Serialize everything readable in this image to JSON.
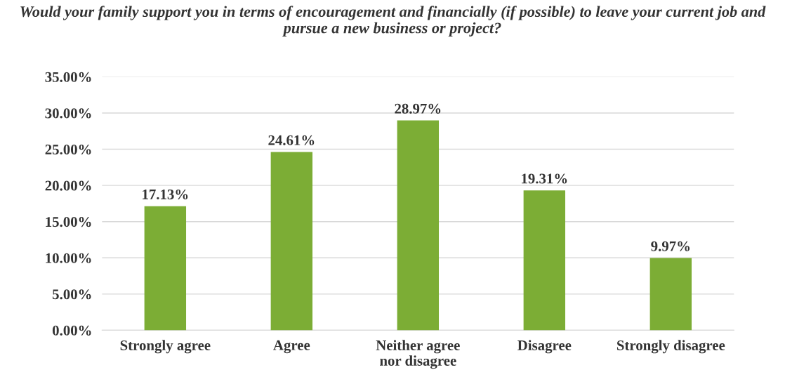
{
  "chart_data": {
    "type": "bar",
    "title": "Would your family support you in terms of encouragement and financially (if possible) to leave your current job and pursue a new business or project?",
    "categories": [
      "Strongly agree",
      "Agree",
      "Neither agree nor disagree",
      "Disagree",
      "Strongly disagree"
    ],
    "values": [
      17.13,
      24.61,
      28.97,
      19.31,
      9.97
    ],
    "value_labels": [
      "17.13%",
      "24.61%",
      "28.97%",
      "19.31%",
      "9.97%"
    ],
    "color": "#7cad35",
    "ylim": [
      0,
      35
    ],
    "yticks": [
      {
        "value": 0,
        "label": "0.00%"
      },
      {
        "value": 5,
        "label": "5.00%"
      },
      {
        "value": 10,
        "label": "10.00%"
      },
      {
        "value": 15,
        "label": "15.00%"
      },
      {
        "value": 20,
        "label": "20.00%"
      },
      {
        "value": 25,
        "label": "25.00%"
      },
      {
        "value": 30,
        "label": "30.00%"
      },
      {
        "value": 35,
        "label": "35.00%"
      }
    ],
    "grid": "y"
  }
}
